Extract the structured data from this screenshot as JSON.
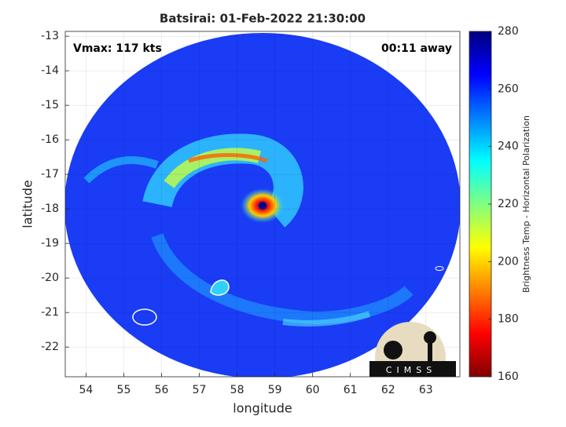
{
  "chart_data": {
    "type": "image",
    "title": "Batsirai: 01-Feb-2022 21:30:00",
    "annotations": [
      "Vmax: 117 kts",
      "00:11 away"
    ],
    "xlabel": "longitude",
    "ylabel": "latitude",
    "xlim": [
      53.45,
      63.9
    ],
    "xticks": [
      54,
      55,
      56,
      57,
      58,
      59,
      60,
      61,
      62,
      63
    ],
    "ylim": [
      -22.86,
      -12.86
    ],
    "yticks": [
      -22,
      -21,
      -20,
      -19,
      -18,
      -17,
      -16,
      -15,
      -14,
      -13
    ],
    "grid": true,
    "colorbar": {
      "label": "Brightness Temp - Horizontal Polarization",
      "clim": [
        160,
        280
      ],
      "ticks": [
        160,
        180,
        200,
        220,
        240,
        260,
        280
      ],
      "colormap": [
        "#800000",
        "#ff0000",
        "#ff8000",
        "#ffff00",
        "#80ff80",
        "#00ffff",
        "#0080ff",
        "#0000ff",
        "#000080"
      ]
    },
    "logo": "CIMSS"
  }
}
